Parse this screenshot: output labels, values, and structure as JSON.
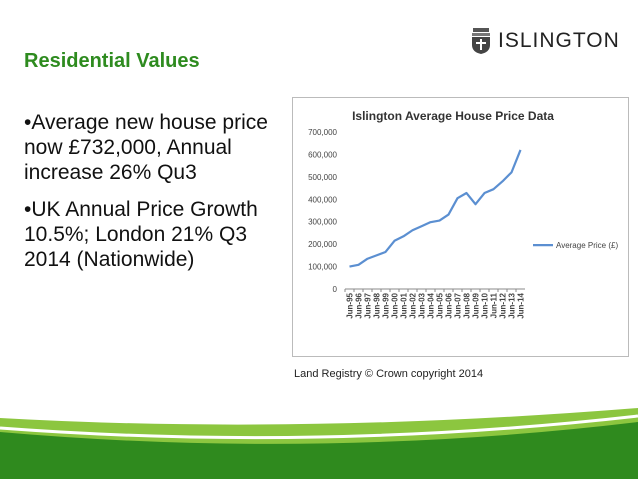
{
  "slide": {
    "title": "Residential Values",
    "logo_text": "ISLINGTON",
    "bullets": [
      "•Average new house price now £732,000, Annual increase 26% Qu3",
      "•UK Annual Price Growth 10.5%; London 21% Q3 2014 (Nationwide)"
    ],
    "caption": "Land Registry © Crown copyright 2014"
  },
  "colors": {
    "title": "#2e8b1f",
    "line": "#5b8fd1",
    "band_dark": "#2f8a1e",
    "band_light": "#8cc63f"
  },
  "chart_data": {
    "type": "line",
    "title": "Islington Average House Price Data",
    "xlabel": "",
    "ylabel": "",
    "ylim": [
      0,
      700000
    ],
    "ytick_labels": [
      "0",
      "100,000",
      "200,000",
      "300,000",
      "400,000",
      "500,000",
      "600,000",
      "700,000"
    ],
    "ytick_values": [
      0,
      100000,
      200000,
      300000,
      400000,
      500000,
      600000,
      700000
    ],
    "categories": [
      "Jun-95",
      "Jun-96",
      "Jun-97",
      "Jun-98",
      "Jun-99",
      "Jun-00",
      "Jun-01",
      "Jun-02",
      "Jun-03",
      "Jun-04",
      "Jun-05",
      "Jun-06",
      "Jun-07",
      "Jun-08",
      "Jun-09",
      "Jun-10",
      "Jun-11",
      "Jun-12",
      "Jun-13",
      "Jun-14"
    ],
    "series": [
      {
        "name": "Average Price (£)",
        "values": [
          100000,
          108000,
          135000,
          150000,
          165000,
          215000,
          235000,
          262000,
          280000,
          298000,
          305000,
          332000,
          405000,
          428000,
          378000,
          428000,
          445000,
          480000,
          520000,
          620000
        ]
      }
    ],
    "legend": "right",
    "grid": false
  }
}
